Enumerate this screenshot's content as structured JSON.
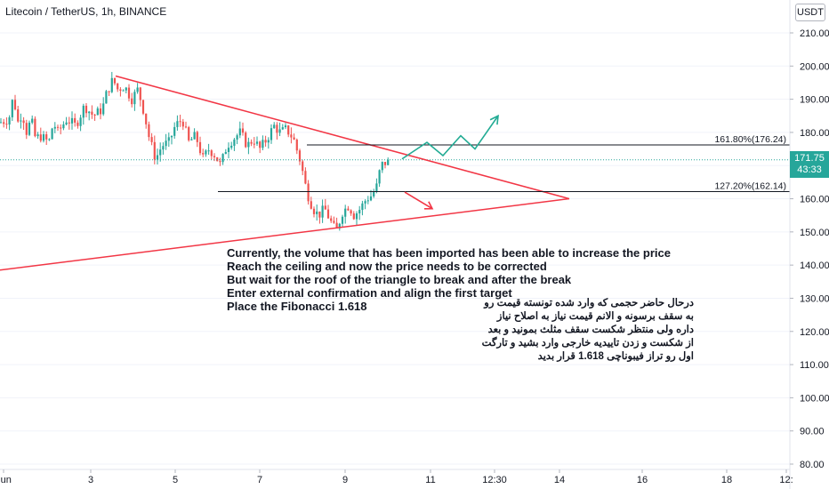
{
  "symbol_title": "Litecoin / TetherUS, 1h, BINANCE",
  "currency_button": "USDT",
  "last_price": "171.75",
  "countdown": "43:33",
  "chart_data": {
    "type": "candlestick",
    "y_ticks": [
      80,
      90,
      100,
      110,
      120,
      130,
      140,
      150,
      160,
      170,
      180,
      190,
      200,
      210
    ],
    "y_tick_labels": [
      "80.00",
      "90.00",
      "100.00",
      "110.00",
      "120.00",
      "130.00",
      "140.00",
      "150.00",
      "160.00",
      "170.00",
      "180.00",
      "190.00",
      "200.00",
      "210.00"
    ],
    "x_tick_labels": [
      "Jun",
      "3",
      "5",
      "7",
      "9",
      "11",
      "12:30",
      "14",
      "16",
      "18",
      "12:"
    ],
    "ylim": [
      79,
      214
    ],
    "candle_path": [
      [
        0,
        183
      ],
      [
        10,
        184
      ],
      [
        15,
        191
      ],
      [
        20,
        183
      ],
      [
        25,
        186
      ],
      [
        30,
        180
      ],
      [
        35,
        184
      ],
      [
        40,
        178
      ],
      [
        45,
        179
      ],
      [
        55,
        177
      ],
      [
        60,
        183
      ],
      [
        65,
        180
      ],
      [
        75,
        184
      ],
      [
        85,
        182
      ],
      [
        95,
        188
      ],
      [
        105,
        185
      ],
      [
        115,
        187
      ],
      [
        120,
        192
      ],
      [
        127,
        196
      ],
      [
        132,
        193
      ],
      [
        140,
        194
      ],
      [
        148,
        190
      ],
      [
        155,
        193
      ],
      [
        162,
        186
      ],
      [
        168,
        178
      ],
      [
        175,
        172
      ],
      [
        182,
        176
      ],
      [
        190,
        177
      ],
      [
        197,
        182
      ],
      [
        205,
        184
      ],
      [
        212,
        177
      ],
      [
        220,
        179
      ],
      [
        228,
        172
      ],
      [
        235,
        175
      ],
      [
        242,
        173
      ],
      [
        248,
        170
      ],
      [
        255,
        176
      ],
      [
        262,
        178
      ],
      [
        270,
        180
      ],
      [
        278,
        176
      ],
      [
        285,
        178
      ],
      [
        292,
        175
      ],
      [
        300,
        178
      ],
      [
        308,
        182
      ],
      [
        315,
        180
      ],
      [
        322,
        181
      ],
      [
        330,
        178
      ],
      [
        338,
        171
      ],
      [
        345,
        162
      ],
      [
        352,
        157
      ],
      [
        358,
        155
      ],
      [
        365,
        157
      ],
      [
        372,
        153
      ],
      [
        378,
        150
      ],
      [
        385,
        156
      ],
      [
        392,
        158
      ],
      [
        398,
        155
      ],
      [
        405,
        157
      ],
      [
        412,
        160
      ],
      [
        418,
        161
      ],
      [
        424,
        164
      ],
      [
        428,
        170
      ],
      [
        434,
        171
      ],
      [
        438,
        171.75
      ]
    ],
    "triangle_upper": [
      [
        130,
        197
      ],
      [
        640,
        160
      ]
    ],
    "triangle_lower": [
      [
        0,
        138.5
      ],
      [
        640,
        160
      ]
    ],
    "fib_lines": [
      {
        "label": "161.80%(176.24)",
        "value": 176.24,
        "x_start": 345
      },
      {
        "label": "127.20%(162.14)",
        "value": 162.14,
        "x_start": 245
      }
    ],
    "projection_up": [
      [
        452,
        172
      ],
      [
        480,
        177
      ],
      [
        498,
        173
      ],
      [
        518,
        179
      ],
      [
        534,
        175
      ],
      [
        560,
        185
      ]
    ],
    "projection_down": [
      [
        455,
        162
      ],
      [
        486,
        157
      ]
    ],
    "colors": {
      "up": "#26a69a",
      "down": "#ef5350",
      "triangle": "#f23645",
      "projection_up": "#22ab94",
      "projection_down": "#f23645",
      "fib_line": "#131722",
      "last_price_line": "#26a69a"
    }
  },
  "note_english": "Currently, the volume that has been imported has been able to increase the price\nReach the ceiling and now the price needs to be corrected\nBut wait for the roof of the triangle to break and after the break\nEnter external confirmation and align the first target\nPlace the Fibonacci 1.618",
  "note_persian": "درحال حاضر حجمی که وارد شده تونسته قیمت رو به سقف برسونه و الانم قیمت نیاز به اصلاح نیاز داره ولی منتظر شکست سقف مثلث بمونید و بعد از شکست و زدن تاییدیه خارجی وارد بشید و تارگت اول رو تراز فیبوناچی 1.618 قرار بدید"
}
